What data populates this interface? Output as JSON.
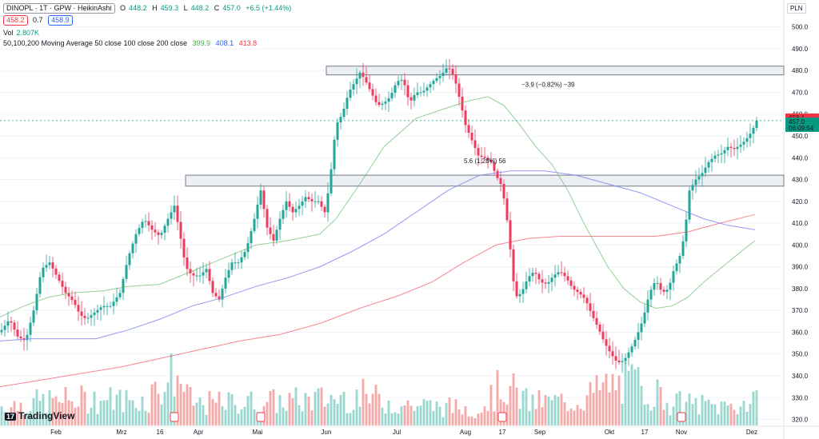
{
  "header": {
    "symbol": "DINOPL · 1T · GPW · HeikinAshi",
    "ohlc": {
      "o_label": "O",
      "o": "448.2",
      "h_label": "H",
      "h": "459.3",
      "l_label": "L",
      "l": "448.2",
      "c_label": "C",
      "c": "457.0",
      "chg": "+6.5 (+1.44%)"
    },
    "bid": "458.2",
    "spread": "0.7",
    "ask": "458.9",
    "vol_label": "Vol",
    "vol_value": "2.807K",
    "ma_label": "50,100,200 Moving Average 50 close 100 close 200 close",
    "ma50": "399.9",
    "ma100": "408.1",
    "ma200": "413.8"
  },
  "currency": "PLN",
  "price_tags": {
    "red": "458.1",
    "green": "457.0",
    "timer": "06:09:54"
  },
  "annotations": {
    "top_range": "−3.9 (−0.82%) −39",
    "mid_range": "5.6 (1.28%) 56"
  },
  "logo_text": "TradingView",
  "colors": {
    "up": "#26a69a",
    "down": "#ef3b5d",
    "ma50": "#4caf50",
    "ma100": "#7b7ff0",
    "ma200": "#f23645"
  },
  "chart_data": {
    "type": "candlestick",
    "y_ticks": [
      500,
      490,
      480,
      470,
      460,
      450,
      440,
      430,
      420,
      410,
      400,
      390,
      380,
      370,
      360,
      350,
      340,
      330,
      320
    ],
    "ylim": [
      318,
      505
    ],
    "x_ticks": [
      "Feb",
      "Mrz",
      "16",
      "Apr",
      "Mai",
      "Jun",
      "Jul",
      "Aug",
      "17",
      "Sep",
      "Okt",
      "17",
      "Nov",
      "Dez"
    ],
    "zones": [
      {
        "from": 478,
        "to": 482
      },
      {
        "from": 427,
        "to": 432
      }
    ],
    "current_price": 457.0,
    "close_path": [
      [
        0,
        360
      ],
      [
        12,
        366
      ],
      [
        22,
        358
      ],
      [
        32,
        356
      ],
      [
        42,
        370
      ],
      [
        52,
        389
      ],
      [
        62,
        392
      ],
      [
        72,
        385
      ],
      [
        82,
        378
      ],
      [
        92,
        374
      ],
      [
        100,
        368
      ],
      [
        108,
        366
      ],
      [
        118,
        369
      ],
      [
        128,
        372
      ],
      [
        138,
        372
      ],
      [
        150,
        378
      ],
      [
        160,
        394
      ],
      [
        170,
        405
      ],
      [
        180,
        412
      ],
      [
        190,
        407
      ],
      [
        200,
        404
      ],
      [
        210,
        412
      ],
      [
        218,
        418
      ],
      [
        225,
        405
      ],
      [
        232,
        390
      ],
      [
        240,
        386
      ],
      [
        250,
        386
      ],
      [
        258,
        389
      ],
      [
        266,
        378
      ],
      [
        274,
        375
      ],
      [
        282,
        385
      ],
      [
        290,
        392
      ],
      [
        298,
        392
      ],
      [
        308,
        398
      ],
      [
        318,
        412
      ],
      [
        326,
        425
      ],
      [
        334,
        408
      ],
      [
        342,
        402
      ],
      [
        350,
        412
      ],
      [
        358,
        420
      ],
      [
        366,
        415
      ],
      [
        374,
        418
      ],
      [
        382,
        422
      ],
      [
        390,
        420
      ],
      [
        398,
        420
      ],
      [
        406,
        415
      ],
      [
        412,
        428
      ],
      [
        420,
        455
      ],
      [
        428,
        460
      ],
      [
        436,
        470
      ],
      [
        444,
        475
      ],
      [
        450,
        479
      ],
      [
        456,
        476
      ],
      [
        464,
        470
      ],
      [
        472,
        464
      ],
      [
        480,
        465
      ],
      [
        488,
        468
      ],
      [
        496,
        475
      ],
      [
        504,
        476
      ],
      [
        512,
        465
      ],
      [
        520,
        470
      ],
      [
        528,
        470
      ],
      [
        536,
        473
      ],
      [
        544,
        476
      ],
      [
        552,
        478
      ],
      [
        560,
        482
      ],
      [
        568,
        477
      ],
      [
        576,
        465
      ],
      [
        582,
        455
      ],
      [
        590,
        448
      ],
      [
        598,
        441
      ],
      [
        606,
        440
      ],
      [
        614,
        438
      ],
      [
        620,
        432
      ],
      [
        626,
        428
      ],
      [
        632,
        418
      ],
      [
        638,
        398
      ],
      [
        644,
        376
      ],
      [
        652,
        378
      ],
      [
        660,
        385
      ],
      [
        668,
        388
      ],
      [
        676,
        383
      ],
      [
        684,
        382
      ],
      [
        692,
        386
      ],
      [
        700,
        388
      ],
      [
        708,
        385
      ],
      [
        716,
        380
      ],
      [
        724,
        378
      ],
      [
        732,
        375
      ],
      [
        740,
        368
      ],
      [
        748,
        362
      ],
      [
        756,
        355
      ],
      [
        764,
        350
      ],
      [
        772,
        346
      ],
      [
        780,
        347
      ],
      [
        788,
        352
      ],
      [
        796,
        358
      ],
      [
        804,
        366
      ],
      [
        812,
        378
      ],
      [
        820,
        384
      ],
      [
        828,
        378
      ],
      [
        836,
        380
      ],
      [
        842,
        388
      ],
      [
        850,
        395
      ],
      [
        856,
        405
      ],
      [
        862,
        425
      ],
      [
        870,
        430
      ],
      [
        878,
        433
      ],
      [
        886,
        438
      ],
      [
        894,
        441
      ],
      [
        902,
        442
      ],
      [
        910,
        445
      ],
      [
        918,
        444
      ],
      [
        926,
        446
      ],
      [
        932,
        448
      ],
      [
        940,
        452
      ],
      [
        946,
        457
      ]
    ],
    "ma50_path": [
      [
        0,
        367
      ],
      [
        30,
        372
      ],
      [
        60,
        376
      ],
      [
        90,
        378
      ],
      [
        130,
        379
      ],
      [
        160,
        381
      ],
      [
        200,
        382
      ],
      [
        240,
        388
      ],
      [
        280,
        394
      ],
      [
        320,
        400
      ],
      [
        360,
        402
      ],
      [
        400,
        405
      ],
      [
        420,
        412
      ],
      [
        450,
        428
      ],
      [
        480,
        445
      ],
      [
        520,
        458
      ],
      [
        560,
        463
      ],
      [
        585,
        466
      ],
      [
        610,
        468
      ],
      [
        630,
        464
      ],
      [
        650,
        455
      ],
      [
        670,
        445
      ],
      [
        690,
        437
      ],
      [
        710,
        425
      ],
      [
        730,
        410
      ],
      [
        760,
        390
      ],
      [
        780,
        380
      ],
      [
        800,
        374
      ],
      [
        820,
        371
      ],
      [
        840,
        372
      ],
      [
        860,
        376
      ],
      [
        880,
        383
      ],
      [
        900,
        389
      ],
      [
        920,
        395
      ],
      [
        944,
        402
      ]
    ],
    "ma100_path": [
      [
        0,
        356
      ],
      [
        40,
        357
      ],
      [
        80,
        357
      ],
      [
        120,
        357
      ],
      [
        160,
        361
      ],
      [
        200,
        366
      ],
      [
        240,
        372
      ],
      [
        280,
        376
      ],
      [
        320,
        381
      ],
      [
        360,
        385
      ],
      [
        400,
        390
      ],
      [
        440,
        397
      ],
      [
        480,
        405
      ],
      [
        520,
        415
      ],
      [
        560,
        425
      ],
      [
        600,
        432
      ],
      [
        640,
        434
      ],
      [
        680,
        434
      ],
      [
        720,
        432
      ],
      [
        760,
        428
      ],
      [
        800,
        424
      ],
      [
        840,
        418
      ],
      [
        880,
        412
      ],
      [
        910,
        409
      ],
      [
        944,
        407
      ]
    ],
    "ma200_path": [
      [
        0,
        335
      ],
      [
        50,
        338
      ],
      [
        100,
        341
      ],
      [
        150,
        344
      ],
      [
        200,
        348
      ],
      [
        250,
        352
      ],
      [
        300,
        356
      ],
      [
        350,
        359
      ],
      [
        400,
        364
      ],
      [
        450,
        371
      ],
      [
        500,
        377
      ],
      [
        540,
        383
      ],
      [
        580,
        392
      ],
      [
        620,
        400
      ],
      [
        660,
        403
      ],
      [
        700,
        404
      ],
      [
        740,
        404
      ],
      [
        780,
        404
      ],
      [
        820,
        404
      ],
      [
        860,
        406
      ],
      [
        900,
        410
      ],
      [
        944,
        414
      ]
    ],
    "volume_path": [
      [
        0,
        25
      ],
      [
        60,
        32
      ],
      [
        120,
        35
      ],
      [
        180,
        33
      ],
      [
        220,
        70
      ],
      [
        240,
        28
      ],
      [
        300,
        30
      ],
      [
        360,
        32
      ],
      [
        410,
        35
      ],
      [
        450,
        40
      ],
      [
        500,
        28
      ],
      [
        560,
        24
      ],
      [
        600,
        22
      ],
      [
        630,
        55
      ],
      [
        660,
        30
      ],
      [
        720,
        32
      ],
      [
        760,
        52
      ],
      [
        800,
        55
      ],
      [
        840,
        30
      ],
      [
        900,
        25
      ],
      [
        944,
        30
      ]
    ],
    "volume_max": 100
  }
}
